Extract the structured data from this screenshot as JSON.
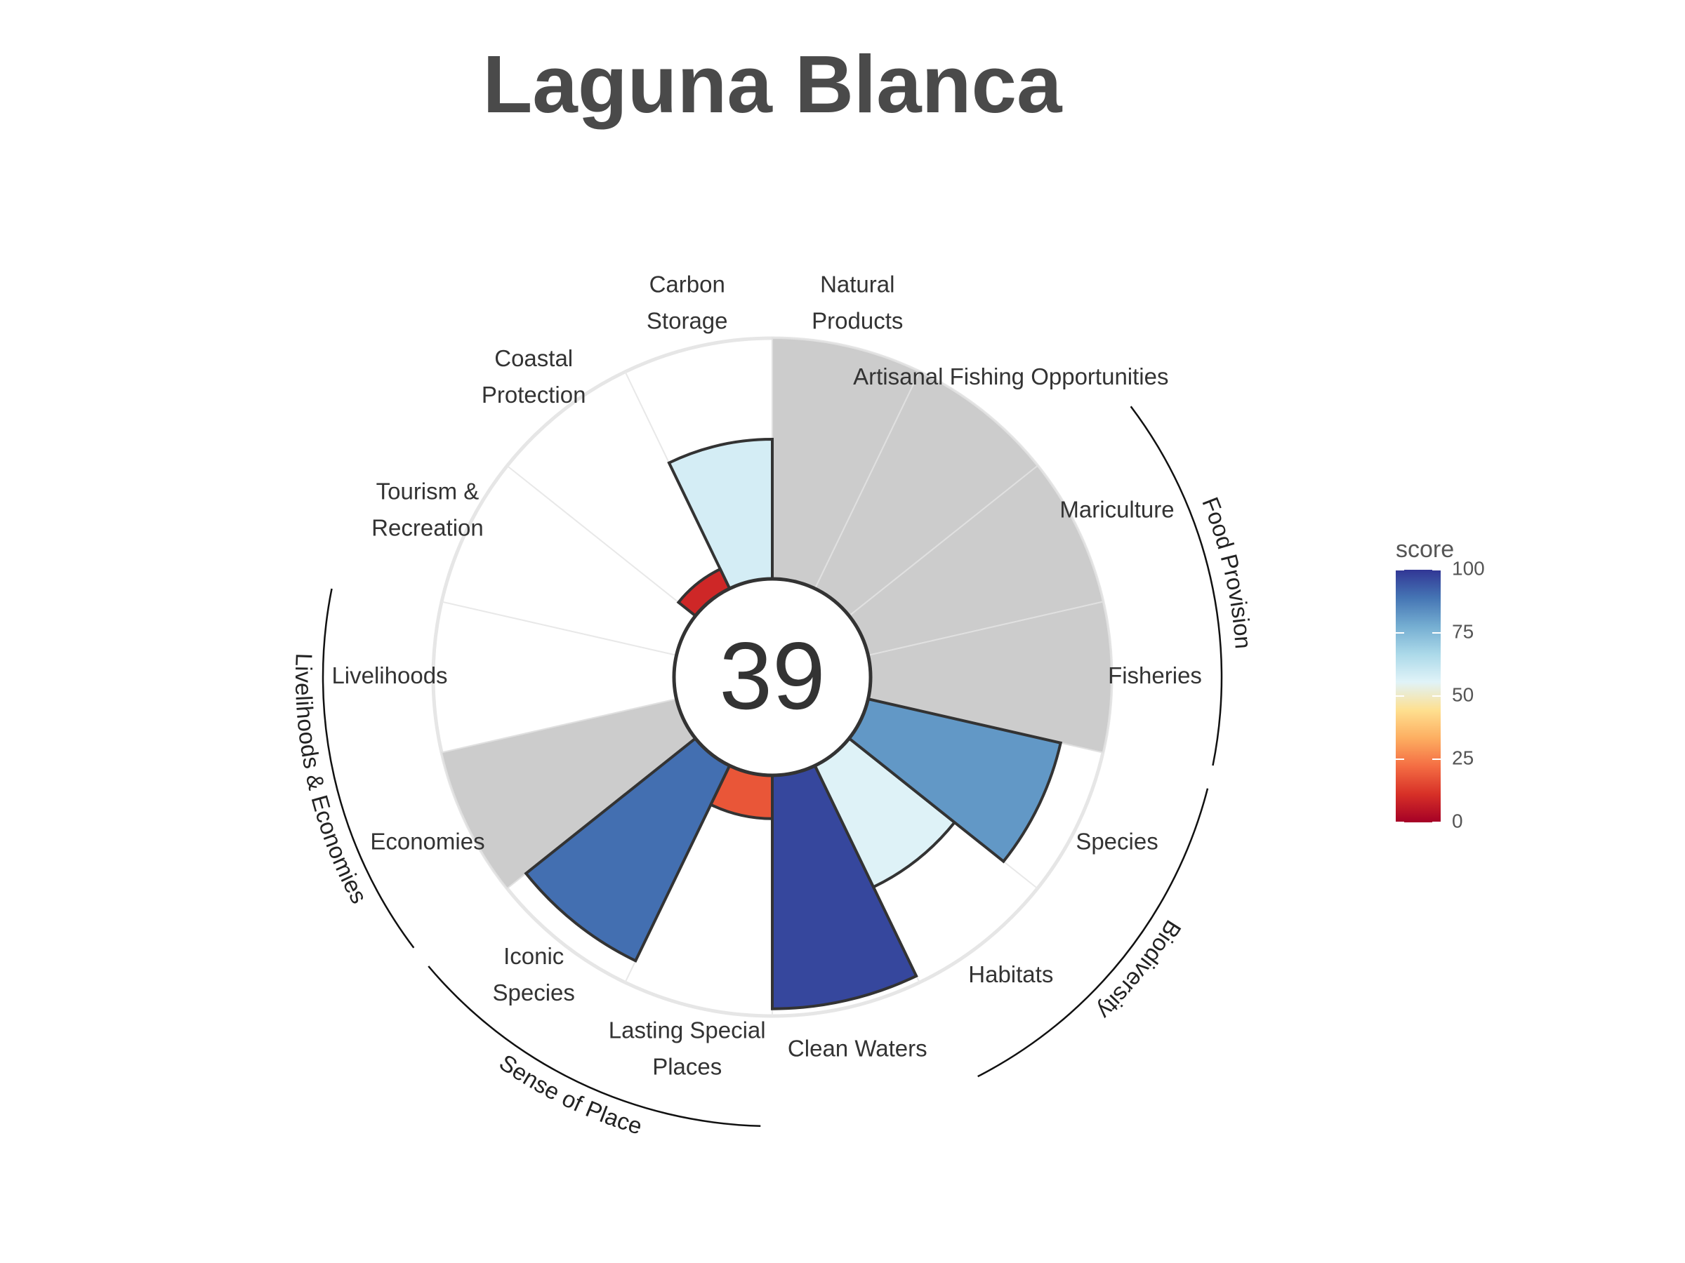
{
  "chart_data": {
    "type": "circular-bar",
    "title": "Laguna Blanca",
    "center_score": "39",
    "scale_max": 100,
    "no_data_color": "#cccccc",
    "categories": [
      {
        "label": "Fisheries",
        "value": null
      },
      {
        "label": "Mariculture",
        "value": null
      },
      {
        "label": "Artisanal Fishing Opportunities",
        "value": null
      },
      {
        "label": "Natural Products",
        "value": null
      },
      {
        "label": "Carbon Storage",
        "value": 58
      },
      {
        "label": "Coastal Protection",
        "value": 9
      },
      {
        "label": "Tourism & Recreation",
        "value": 0
      },
      {
        "label": "Livelihoods",
        "value": 0
      },
      {
        "label": "Economies",
        "value": null
      },
      {
        "label": "Iconic Species",
        "value": 90
      },
      {
        "label": "Lasting Special Places",
        "value": 18
      },
      {
        "label": "Clean Waters",
        "value": 97
      },
      {
        "label": "Habitats",
        "value": 56
      },
      {
        "label": "Species",
        "value": 82
      }
    ],
    "groups": [
      {
        "label": "Food Provision"
      },
      {
        "label": "Biodiversity"
      },
      {
        "label": "Sense of Place"
      },
      {
        "label": "Livelihoods & Economies"
      }
    ],
    "legend": {
      "title": "score",
      "ticks": [
        "100",
        "75",
        "50",
        "25",
        "0"
      ],
      "colors": [
        "#a50026",
        "#d73027",
        "#f46d43",
        "#fdae61",
        "#fee090",
        "#e0f3f8",
        "#abd9e9",
        "#74add1",
        "#4575b4",
        "#313695"
      ]
    }
  }
}
